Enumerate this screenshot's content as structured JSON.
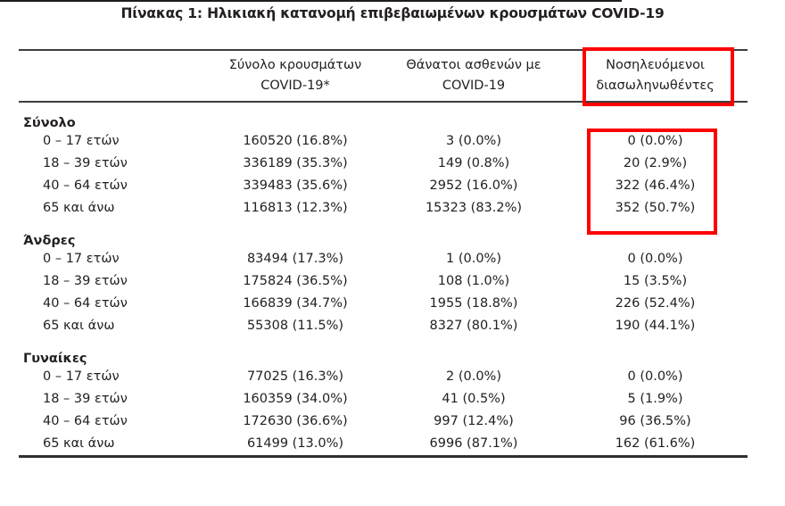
{
  "title": "Πίνακας 1: Ηλικιακή κατανομή επιβεβαιωμένων κρουσμάτων COVID-19",
  "table": {
    "headers": {
      "row_label": "",
      "cases": {
        "line1": "Σύνολο κρουσμάτων",
        "line2": "COVID-19*"
      },
      "deaths": {
        "line1": "Θάνατοι ασθενών με",
        "line2": "COVID-19"
      },
      "intubated": {
        "line1": "Νοσηλευόμενοι",
        "line2": "διασωληνωθέντες"
      }
    },
    "sections": [
      {
        "label": "Σύνολο",
        "rows": [
          {
            "age": "0 – 17 ετών",
            "cases": "160520 (16.8%)",
            "deaths": "3 (0.0%)",
            "intubated": "0 (0.0%)"
          },
          {
            "age": "18 – 39 ετών",
            "cases": "336189 (35.3%)",
            "deaths": "149 (0.8%)",
            "intubated": "20 (2.9%)"
          },
          {
            "age": "40 – 64 ετών",
            "cases": "339483 (35.6%)",
            "deaths": "2952 (16.0%)",
            "intubated": "322 (46.4%)"
          },
          {
            "age": "65 και άνω",
            "cases": "116813 (12.3%)",
            "deaths": "15323 (83.2%)",
            "intubated": "352 (50.7%)"
          }
        ]
      },
      {
        "label": "Άνδρες",
        "rows": [
          {
            "age": "0 – 17 ετών",
            "cases": "83494 (17.3%)",
            "deaths": "1 (0.0%)",
            "intubated": "0 (0.0%)"
          },
          {
            "age": "18 – 39 ετών",
            "cases": "175824 (36.5%)",
            "deaths": "108 (1.0%)",
            "intubated": "15 (3.5%)"
          },
          {
            "age": "40 – 64 ετών",
            "cases": "166839 (34.7%)",
            "deaths": "1955 (18.8%)",
            "intubated": "226 (52.4%)"
          },
          {
            "age": "65 και άνω",
            "cases": "55308 (11.5%)",
            "deaths": "8327 (80.1%)",
            "intubated": "190 (44.1%)"
          }
        ]
      },
      {
        "label": "Γυναίκες",
        "rows": [
          {
            "age": "0 – 17 ετών",
            "cases": "77025 (16.3%)",
            "deaths": "2 (0.0%)",
            "intubated": "0 (0.0%)"
          },
          {
            "age": "18 – 39 ετών",
            "cases": "160359 (34.0%)",
            "deaths": "41 (0.5%)",
            "intubated": "5 (1.9%)"
          },
          {
            "age": "40 – 64 ετών",
            "cases": "172630 (36.6%)",
            "deaths": "997 (12.4%)",
            "intubated": "96 (36.5%)"
          },
          {
            "age": "65 και άνω",
            "cases": "61499 (13.0%)",
            "deaths": "6996 (87.1%)",
            "intubated": "162 (61.6%)"
          }
        ]
      }
    ]
  },
  "highlights": {
    "color": "#fe0000",
    "boxes": [
      {
        "name": "intubated-column-header"
      },
      {
        "name": "intubated-total-values"
      }
    ]
  },
  "colors": {
    "text": "#242021",
    "rule": "#3d3d3d",
    "highlight": "#fe0000"
  }
}
